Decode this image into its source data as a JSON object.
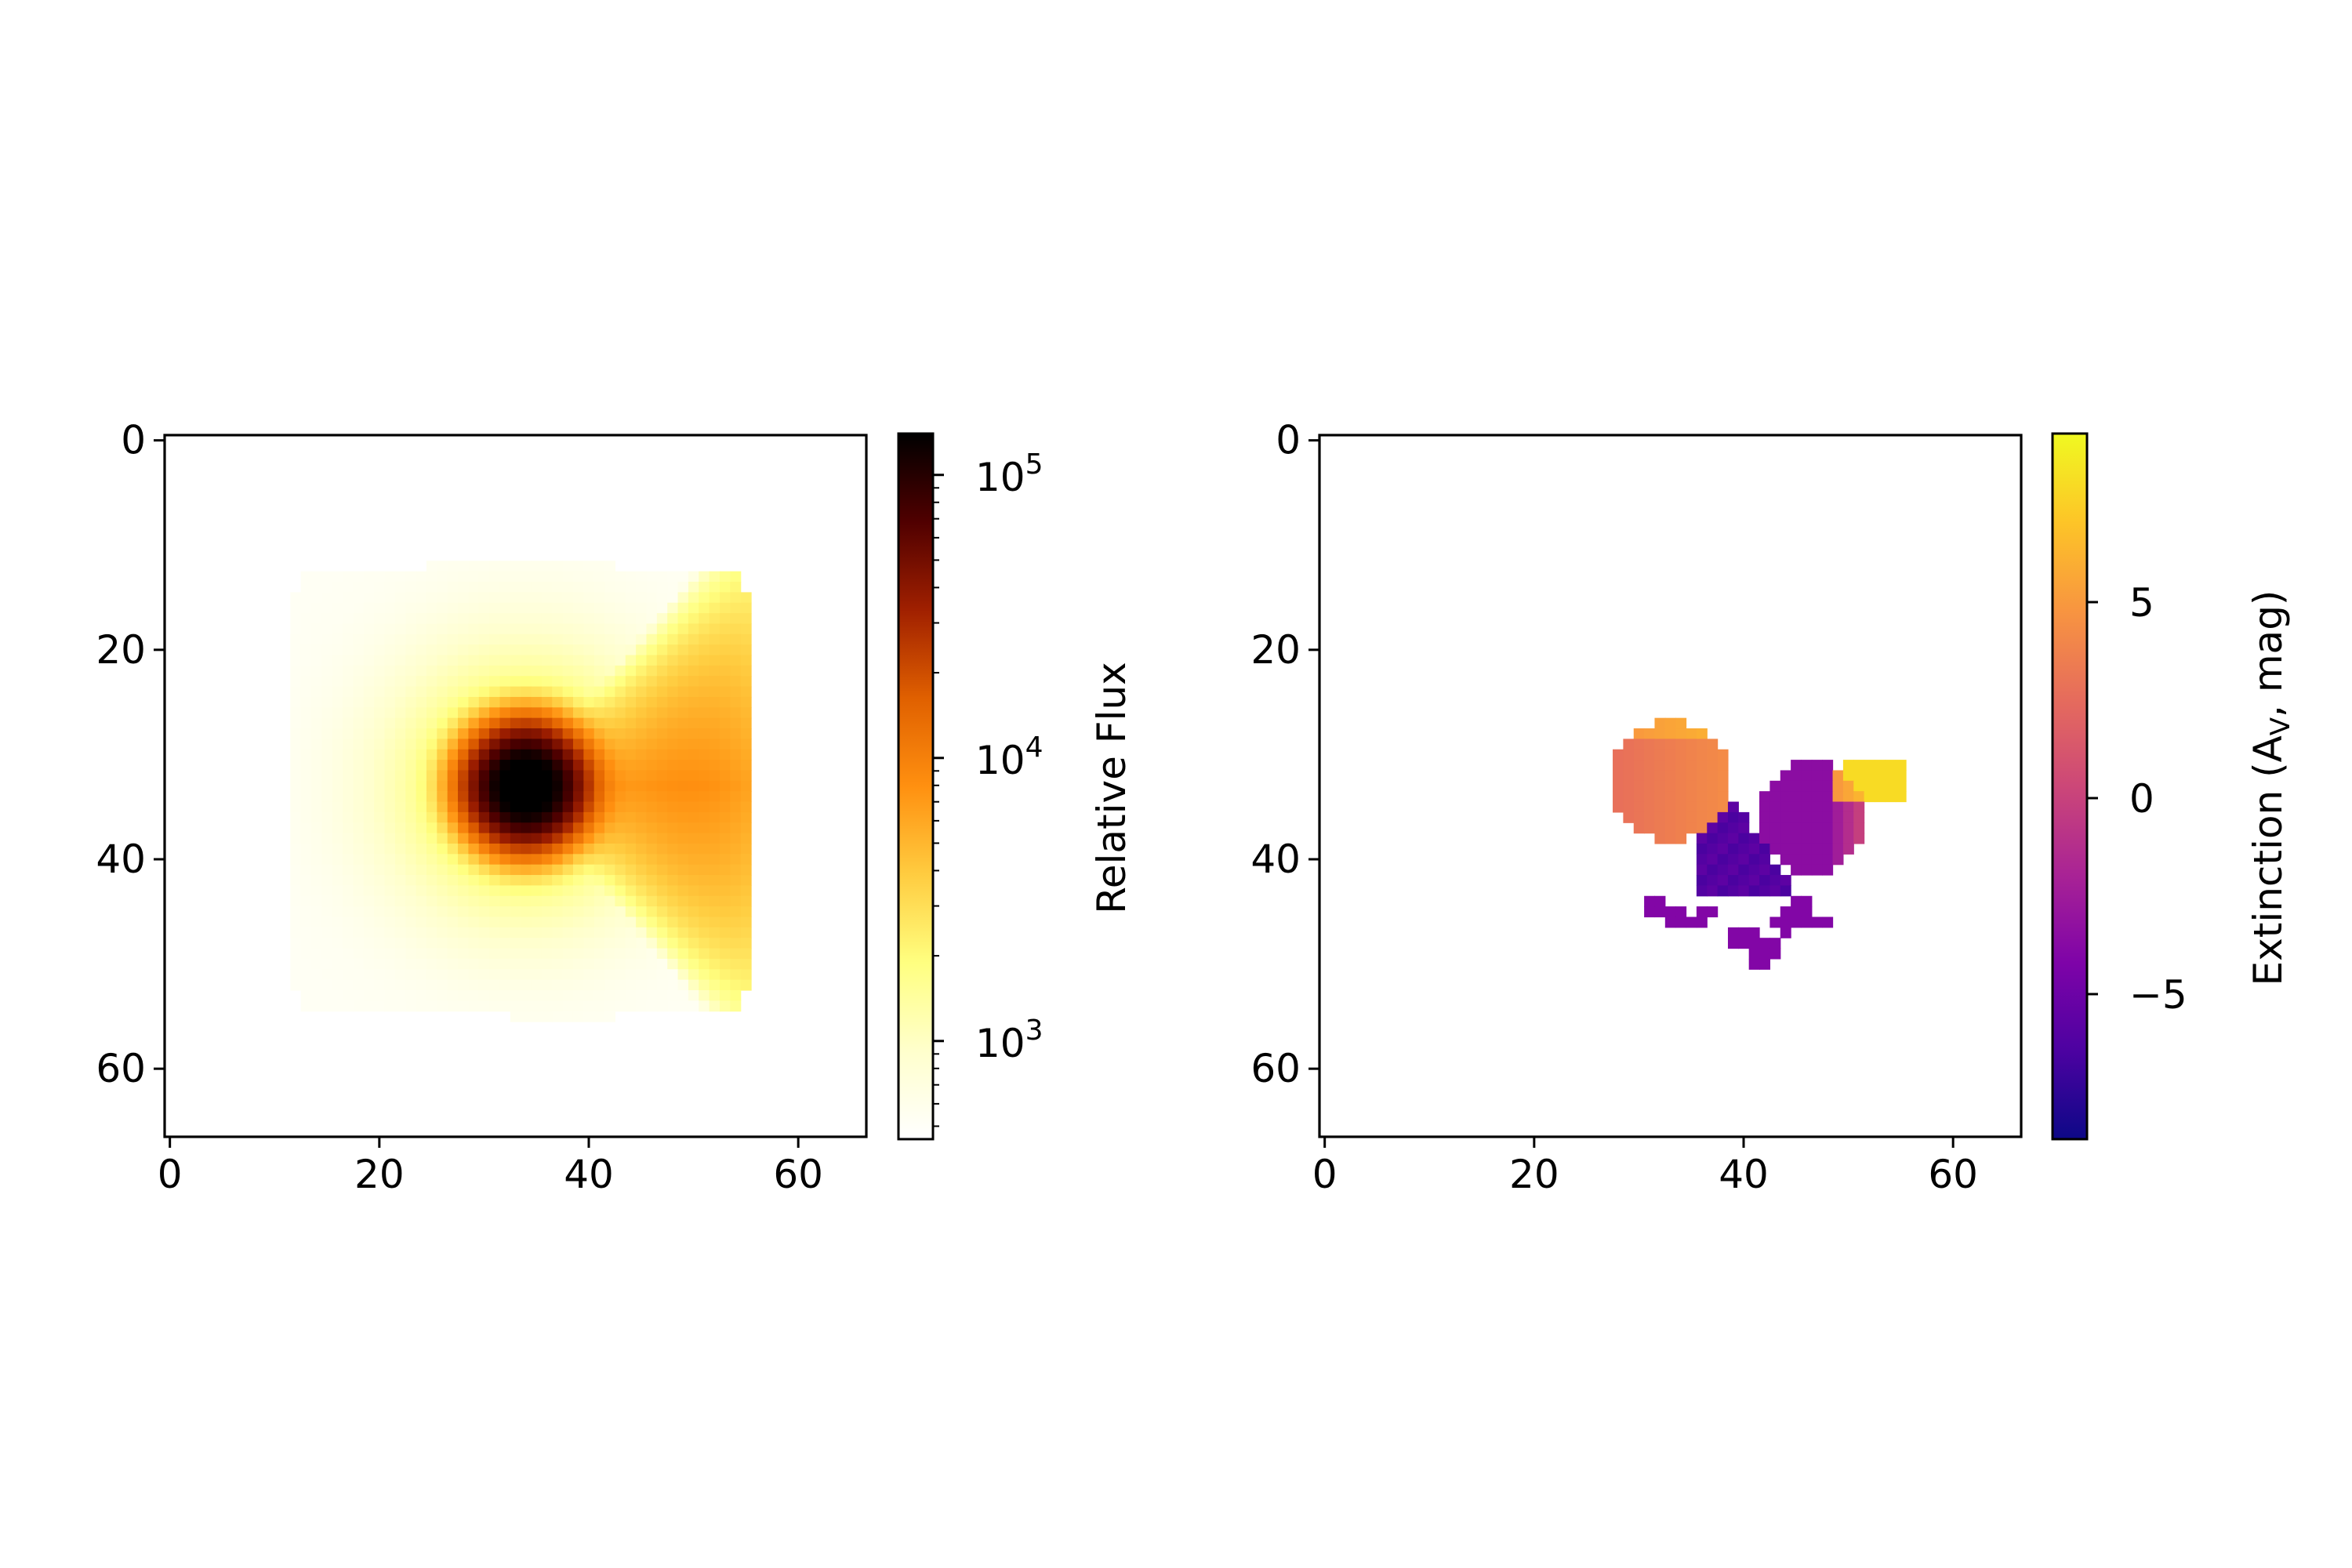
{
  "chart_data": [
    {
      "type": "heatmap",
      "panel": "left",
      "title": "",
      "xlabel": "",
      "ylabel": "",
      "x_range": [
        -0.5,
        66.5
      ],
      "y_range": [
        66.5,
        -0.5
      ],
      "x_ticks": [
        0,
        20,
        40,
        60
      ],
      "y_ticks": [
        0,
        20,
        40,
        60
      ],
      "x_tick_labels": [
        "0",
        "20",
        "40",
        "60"
      ],
      "y_tick_labels": [
        "0",
        "20",
        "40",
        "60"
      ],
      "colormap": "afmhot_r",
      "colorbar": {
        "label": "Relative Flux",
        "scale": "log",
        "range": [
          450,
          140000
        ],
        "ticks": [
          1000,
          10000,
          100000
        ],
        "tick_labels": [
          {
            "base": "10",
            "exp": "3"
          },
          {
            "base": "10",
            "exp": "4"
          },
          {
            "base": "10",
            "exp": "5"
          }
        ]
      },
      "description_of_data": {
        "peak_center": [
          34,
          33
        ],
        "peak_value": 140000,
        "support_region": "hexagonal footprint, x≈12–55, y≈12–55",
        "extended_emission": "orange wedge extending toward x≈55 at y≈33",
        "outer_patches_value": 600
      }
    },
    {
      "type": "heatmap",
      "panel": "right",
      "title": "",
      "xlabel": "",
      "ylabel": "",
      "x_range": [
        -0.5,
        66.5
      ],
      "y_range": [
        66.5,
        -0.5
      ],
      "x_ticks": [
        0,
        20,
        40,
        60
      ],
      "y_ticks": [
        0,
        20,
        40,
        60
      ],
      "x_tick_labels": [
        "0",
        "20",
        "40",
        "60"
      ],
      "y_tick_labels": [
        "0",
        "20",
        "40",
        "60"
      ],
      "colormap": "plasma",
      "colorbar": {
        "label_prefix": "Extinction (A",
        "label_sub": "V",
        "label_suffix": ", mag)",
        "scale": "linear",
        "range": [
          -8.7,
          9.3
        ],
        "ticks": [
          5,
          0,
          -5
        ],
        "tick_labels": [
          "5",
          "0",
          "−5"
        ]
      },
      "description_of_data": {
        "left_lobe": {
          "center": [
            33.5,
            33
          ],
          "radius": 5.5,
          "value": 3.5
        },
        "right_lobe": {
          "center": [
            47,
            36.5
          ],
          "radius": 5,
          "value": -3.5
        },
        "bridge_value": -6.5,
        "right_edge_value": 8,
        "small_patches_value": -4
      }
    }
  ],
  "colors": {
    "axes": "#000000",
    "background": "#ffffff"
  }
}
